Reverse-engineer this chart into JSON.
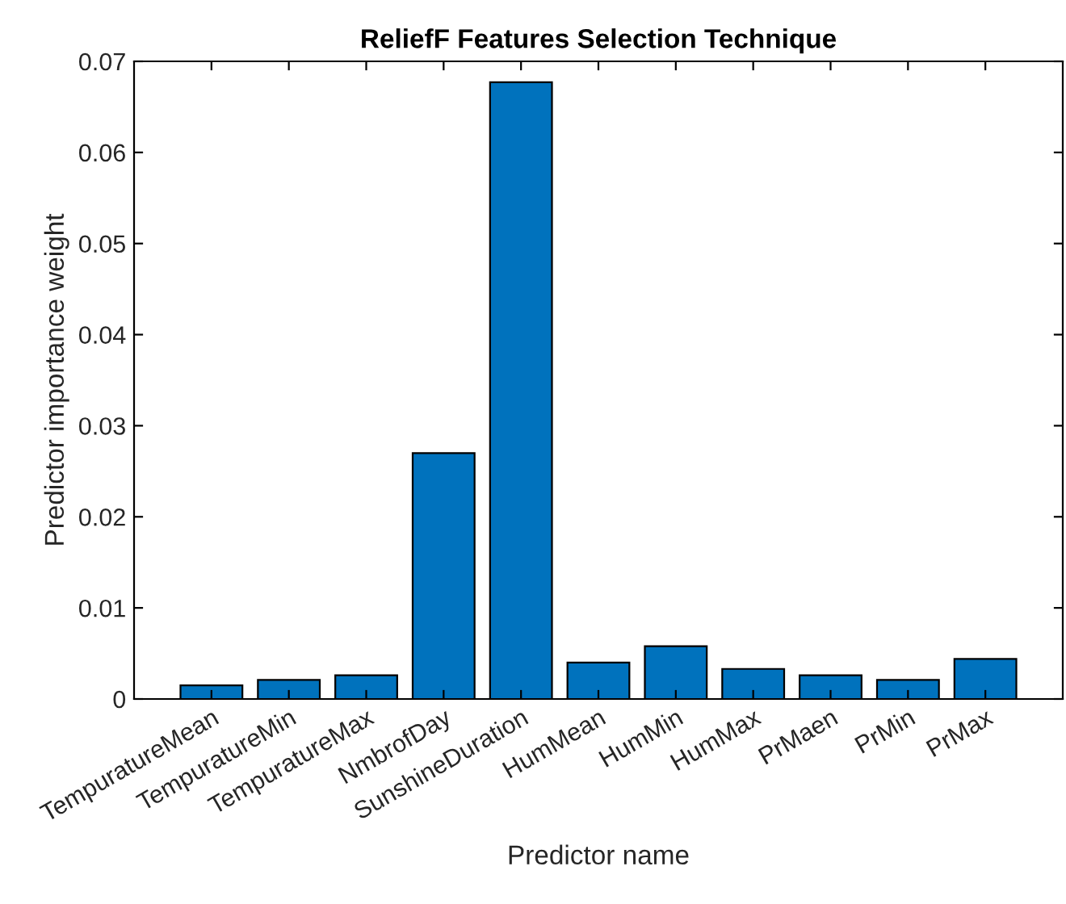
{
  "chart_data": {
    "type": "bar",
    "title": "ReliefF Features Selection Technique",
    "xlabel": "Predictor name",
    "ylabel": "Predictor importance weight",
    "categories": [
      "TempuratureMean",
      "TempuratureMin",
      "TempuratureMax",
      "NmbrofDay",
      "SunshineDuration",
      "HumMean",
      "HumMin",
      "HumMax",
      "PrMaen",
      "PrMin",
      "PrMax"
    ],
    "values": [
      0.0015,
      0.0021,
      0.0026,
      0.027,
      0.0677,
      0.004,
      0.0058,
      0.0033,
      0.0026,
      0.0021,
      0.0044
    ],
    "color": "#0072bd",
    "ylim": [
      0,
      0.07
    ],
    "yticks": [
      0,
      0.01,
      0.02,
      0.03,
      0.04,
      0.05,
      0.06,
      0.07
    ],
    "grid": false
  }
}
